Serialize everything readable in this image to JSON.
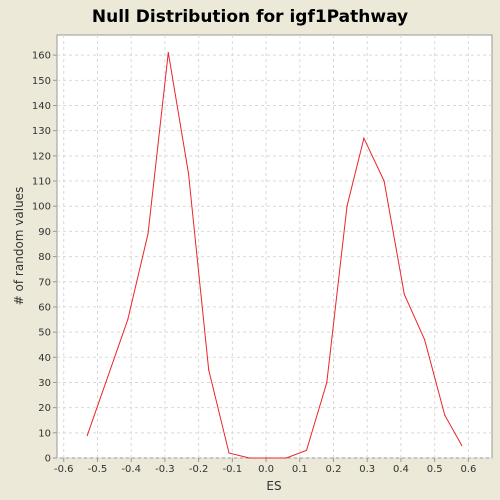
{
  "chart_data": {
    "type": "line",
    "title": "Null Distribution for igf1Pathway",
    "xlabel": "ES",
    "ylabel": "# of random values",
    "xlim": [
      -0.62,
      0.67
    ],
    "ylim": [
      0,
      168
    ],
    "x_ticks": [
      -0.6,
      -0.5,
      -0.4,
      -0.3,
      -0.2,
      -0.1,
      0.0,
      0.1,
      0.2,
      0.3,
      0.4,
      0.5,
      0.6
    ],
    "x_tick_labels": [
      "-0.6",
      "-0.5",
      "-0.4",
      "-0.3",
      "-0.2",
      "-0.1",
      "0.0",
      "0.1",
      "0.2",
      "0.3",
      "0.4",
      "0.5",
      "0.6"
    ],
    "y_ticks": [
      0,
      10,
      20,
      30,
      40,
      50,
      60,
      70,
      80,
      90,
      100,
      110,
      120,
      130,
      140,
      150,
      160
    ],
    "y_tick_labels": [
      "0",
      "10",
      "20",
      "30",
      "40",
      "50",
      "60",
      "70",
      "80",
      "90",
      "100",
      "110",
      "120",
      "130",
      "140",
      "150",
      "160"
    ],
    "grid": true,
    "series": [
      {
        "color": "#e8262b",
        "x": [
          -0.53,
          -0.41,
          -0.35,
          -0.29,
          -0.23,
          -0.17,
          -0.11,
          -0.05,
          0.0,
          0.06,
          0.12,
          0.18,
          0.24,
          0.29,
          0.35,
          0.41,
          0.47,
          0.53,
          0.58
        ],
        "y": [
          9,
          55,
          89,
          161,
          113,
          35,
          2,
          0,
          0,
          0,
          3,
          30,
          100,
          127,
          110,
          65,
          47,
          17,
          5
        ]
      }
    ]
  },
  "colors": {
    "background": "#ece9d8",
    "plot_background": "#ffffff",
    "grid": "#d9d9d9",
    "axis": "#999999",
    "line": "#e8262b"
  }
}
